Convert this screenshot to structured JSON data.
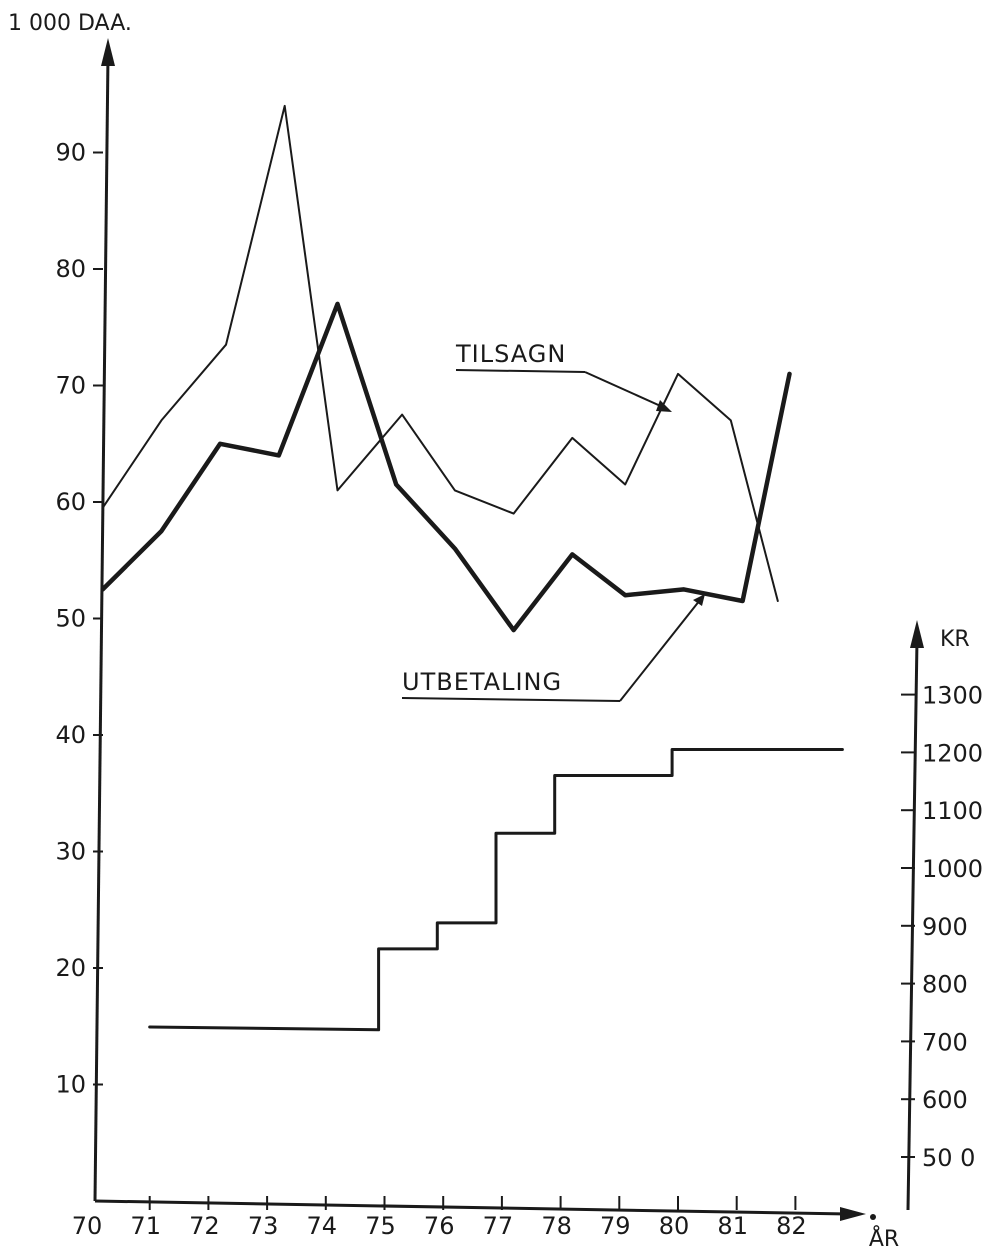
{
  "chart_data": {
    "type": "line",
    "left_axis": {
      "unit_label": "1 000 DAA.",
      "ticks": [
        10,
        20,
        30,
        40,
        50,
        60,
        70,
        80,
        90
      ],
      "range": [
        0,
        100
      ]
    },
    "right_axis": {
      "unit_label": "KR",
      "ticks": [
        500,
        600,
        700,
        800,
        900,
        1000,
        1100,
        1200,
        1300
      ],
      "tick_labels": [
        "50 0",
        "600",
        "700",
        "800",
        "900",
        "1000",
        "1100",
        "1200",
        "1300"
      ],
      "range": [
        400,
        1400
      ]
    },
    "x_axis": {
      "label": "ÅR",
      "ticks": [
        70,
        71,
        72,
        73,
        74,
        75,
        76,
        77,
        78,
        79,
        80,
        81,
        82
      ],
      "range": [
        70,
        83.4
      ]
    },
    "series": [
      {
        "name": "TILSAGN",
        "axis": "left",
        "color": "#1a1a1a",
        "weight": "thin",
        "x": [
          70.2,
          71.2,
          72.3,
          73.3,
          74.2,
          75.3,
          76.2,
          77.2,
          78.2,
          79.1,
          80.0,
          80.9,
          81.7
        ],
        "values": [
          59.5,
          67,
          73.5,
          94,
          61,
          67.5,
          61,
          59,
          65.5,
          61.5,
          71,
          67,
          51.5
        ]
      },
      {
        "name": "UTBETALING",
        "axis": "left",
        "color": "#1a1a1a",
        "weight": "thick",
        "x": [
          70.2,
          71.2,
          72.2,
          73.2,
          74.2,
          75.2,
          76.2,
          77.2,
          78.2,
          79.1,
          80.1,
          81.1,
          81.9
        ],
        "values": [
          52.5,
          57.5,
          65,
          64,
          77,
          61.5,
          56,
          49,
          55.5,
          52,
          52.5,
          51.5,
          71
        ]
      },
      {
        "name": "",
        "axis": "right",
        "type": "step",
        "color": "#1a1a1a",
        "weight": "medium",
        "x": [
          71.0,
          74.9,
          74.9,
          75.9,
          75.9,
          76.9,
          76.9,
          77.9,
          77.9,
          78.9,
          79.9,
          79.9,
          80.9,
          81.9,
          82.8
        ],
        "values": [
          725,
          720,
          860,
          860,
          905,
          905,
          1060,
          1060,
          1160,
          1160,
          1160,
          1205,
          1205,
          1205,
          1205
        ]
      }
    ]
  }
}
